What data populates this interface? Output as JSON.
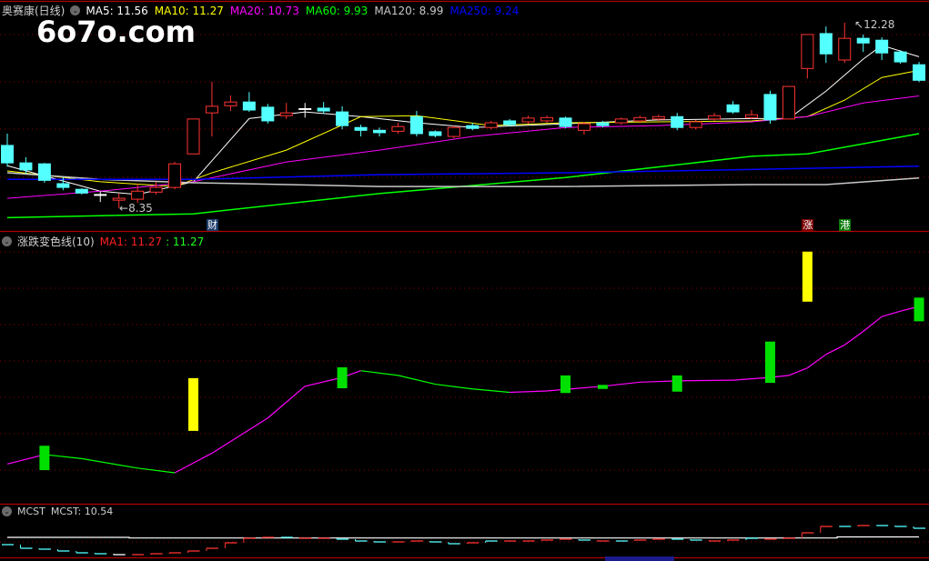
{
  "header": {
    "stock_title": "奥赛康(日线)",
    "ma_labels": [
      {
        "text": "MA5: 11.56",
        "color": "#ffffff"
      },
      {
        "text": "MA10: 11.27",
        "color": "#ffff00"
      },
      {
        "text": "MA20: 10.73",
        "color": "#ff00ff"
      },
      {
        "text": "MA60: 9.93",
        "color": "#00ff00"
      },
      {
        "text": "MA120: 8.99",
        "color": "#c8c8c8"
      },
      {
        "text": "MA250: 9.24",
        "color": "#0000ff"
      }
    ]
  },
  "watermark": "6o7o.com",
  "price_labels": {
    "high": "12.28",
    "low": "8.35"
  },
  "event_marks": [
    {
      "text": "财",
      "index": 11,
      "bg": "#1a3a6a"
    },
    {
      "text": "涨",
      "index": 43,
      "bg": "#7a0000"
    },
    {
      "text": "港",
      "index": 45,
      "bg": "#0a7a0a"
    }
  ],
  "indicator2": {
    "title": "涨跌变色线(10)",
    "ma1_label": "MA1: 11.27",
    "value_label": ": 11.27"
  },
  "indicator3": {
    "title": "MCST",
    "value_label": "MCST: 10.54"
  },
  "colors": {
    "up": "#ff3232",
    "down": "#54ffff",
    "grid": "#8b0000",
    "border": "#b00000"
  },
  "chart_data": [
    {
      "type": "candlestick",
      "title": "奥赛康(日线)",
      "ohlc": [
        [
          9.68,
          9.31,
          9.93,
          9.23
        ],
        [
          9.31,
          9.16,
          9.43,
          9.08
        ],
        [
          9.29,
          8.94,
          9.31,
          8.89
        ],
        [
          8.87,
          8.79,
          9.0,
          8.73
        ],
        [
          8.75,
          8.67,
          8.77,
          8.64
        ],
        [
          8.64,
          8.63,
          8.71,
          8.48
        ],
        [
          8.52,
          8.56,
          8.66,
          8.35
        ],
        [
          8.54,
          8.71,
          8.87,
          8.46
        ],
        [
          8.69,
          8.79,
          8.91,
          8.64
        ],
        [
          8.79,
          9.29,
          9.33,
          8.75
        ],
        [
          9.5,
          10.24,
          10.24,
          9.5
        ],
        [
          10.37,
          10.51,
          11.03,
          9.87
        ],
        [
          10.52,
          10.6,
          10.74,
          10.41
        ],
        [
          10.6,
          10.43,
          10.81,
          10.39
        ],
        [
          10.49,
          10.2,
          10.56,
          10.14
        ],
        [
          10.31,
          10.37,
          10.58,
          10.24
        ],
        [
          10.45,
          10.46,
          10.58,
          10.27
        ],
        [
          10.47,
          10.41,
          10.6,
          10.35
        ],
        [
          10.39,
          10.1,
          10.51,
          10.02
        ],
        [
          10.06,
          10.0,
          10.12,
          9.87
        ],
        [
          10.0,
          9.95,
          10.06,
          9.87
        ],
        [
          9.98,
          10.08,
          10.16,
          9.93
        ],
        [
          10.29,
          9.93,
          10.41,
          9.87
        ],
        [
          9.97,
          9.89,
          10.0,
          9.85
        ],
        [
          9.87,
          10.06,
          10.1,
          9.83
        ],
        [
          10.1,
          10.04,
          10.16,
          10.0
        ],
        [
          10.06,
          10.16,
          10.2,
          10.02
        ],
        [
          10.2,
          10.12,
          10.24,
          10.08
        ],
        [
          10.18,
          10.26,
          10.31,
          10.14
        ],
        [
          10.2,
          10.27,
          10.31,
          10.16
        ],
        [
          10.26,
          10.08,
          10.29,
          10.04
        ],
        [
          10.0,
          10.14,
          10.18,
          9.91
        ],
        [
          10.16,
          10.1,
          10.2,
          10.06
        ],
        [
          10.16,
          10.24,
          10.27,
          10.12
        ],
        [
          10.2,
          10.27,
          10.31,
          10.16
        ],
        [
          10.24,
          10.29,
          10.33,
          10.2
        ],
        [
          10.29,
          10.06,
          10.37,
          10.0
        ],
        [
          10.06,
          10.18,
          10.22,
          10.02
        ],
        [
          10.24,
          10.31,
          10.37,
          10.2
        ],
        [
          10.54,
          10.39,
          10.62,
          10.35
        ],
        [
          10.27,
          10.33,
          10.43,
          10.24
        ],
        [
          10.76,
          10.22,
          10.84,
          10.14
        ],
        [
          10.24,
          10.93,
          10.93,
          10.24
        ],
        [
          11.31,
          12.03,
          12.03,
          11.1
        ],
        [
          12.05,
          11.62,
          12.2,
          11.43
        ],
        [
          11.49,
          11.95,
          12.28,
          11.43
        ],
        [
          11.95,
          11.85,
          12.03,
          11.66
        ],
        [
          11.91,
          11.64,
          11.97,
          11.49
        ],
        [
          11.66,
          11.45,
          11.7,
          11.41
        ],
        [
          11.39,
          11.06,
          11.45,
          11.02
        ]
      ],
      "moving_averages": [
        {
          "name": "MA5",
          "color": "#ffffff",
          "points": [
            [
              0,
              9.25
            ],
            [
              5,
              8.71
            ],
            [
              7,
              8.64
            ],
            [
              10,
              8.91
            ],
            [
              13,
              10.25
            ],
            [
              16,
              10.39
            ],
            [
              19,
              10.29
            ],
            [
              22,
              10.16
            ],
            [
              25,
              10.06
            ],
            [
              30,
              10.14
            ],
            [
              35,
              10.22
            ],
            [
              40,
              10.25
            ],
            [
              42,
              10.25
            ],
            [
              44,
              10.83
            ],
            [
              46,
              11.51
            ],
            [
              47,
              11.8
            ],
            [
              49,
              11.56
            ]
          ]
        },
        {
          "name": "MA10",
          "color": "#ffff00",
          "points": [
            [
              0,
              9.14
            ],
            [
              5,
              8.91
            ],
            [
              9,
              8.81
            ],
            [
              11,
              9.1
            ],
            [
              15,
              9.58
            ],
            [
              19,
              10.29
            ],
            [
              22,
              10.31
            ],
            [
              26,
              10.1
            ],
            [
              30,
              10.16
            ],
            [
              40,
              10.2
            ],
            [
              43,
              10.29
            ],
            [
              45,
              10.64
            ],
            [
              47,
              11.12
            ],
            [
              49,
              11.27
            ]
          ]
        },
        {
          "name": "MA20",
          "color": "#ff00ff",
          "points": [
            [
              0,
              8.56
            ],
            [
              5,
              8.71
            ],
            [
              10,
              8.91
            ],
            [
              15,
              9.33
            ],
            [
              20,
              9.58
            ],
            [
              25,
              9.87
            ],
            [
              30,
              10.06
            ],
            [
              35,
              10.1
            ],
            [
              40,
              10.18
            ],
            [
              43,
              10.29
            ],
            [
              46,
              10.58
            ],
            [
              49,
              10.73
            ]
          ]
        },
        {
          "name": "MA60",
          "color": "#00ff00",
          "points": [
            [
              0,
              8.15
            ],
            [
              10,
              8.23
            ],
            [
              20,
              8.66
            ],
            [
              30,
              9.0
            ],
            [
              40,
              9.45
            ],
            [
              43,
              9.5
            ],
            [
              49,
              9.93
            ]
          ]
        },
        {
          "name": "MA120",
          "color": "#c8c8c8",
          "points": [
            [
              0,
              9.1
            ],
            [
              5,
              8.96
            ],
            [
              10,
              8.89
            ],
            [
              20,
              8.81
            ],
            [
              30,
              8.81
            ],
            [
              40,
              8.85
            ],
            [
              44,
              8.85
            ],
            [
              49,
              8.99
            ]
          ]
        },
        {
          "name": "MA250",
          "color": "#0000ff",
          "points": [
            [
              0,
              8.96
            ],
            [
              10,
              8.96
            ],
            [
              20,
              9.06
            ],
            [
              30,
              9.1
            ],
            [
              40,
              9.17
            ],
            [
              45,
              9.21
            ],
            [
              49,
              9.24
            ]
          ]
        }
      ]
    },
    {
      "type": "line",
      "title": "涨跌变色线(10)",
      "line": [
        [
          0,
          8.94
        ],
        [
          2,
          9.08
        ],
        [
          4,
          9.02
        ],
        [
          7,
          8.88
        ],
        [
          9,
          8.81
        ],
        [
          11,
          9.1
        ],
        [
          14,
          9.62
        ],
        [
          16,
          10.09
        ],
        [
          18,
          10.22
        ],
        [
          19,
          10.32
        ],
        [
          21,
          10.25
        ],
        [
          23,
          10.12
        ],
        [
          25,
          10.05
        ],
        [
          27,
          10.0
        ],
        [
          29,
          10.02
        ],
        [
          32,
          10.09
        ],
        [
          34,
          10.15
        ],
        [
          36,
          10.17
        ],
        [
          39,
          10.18
        ],
        [
          41,
          10.22
        ],
        [
          42,
          10.25
        ],
        [
          43,
          10.36
        ],
        [
          44,
          10.56
        ],
        [
          45,
          10.7
        ],
        [
          46,
          10.9
        ],
        [
          47,
          11.12
        ],
        [
          48,
          11.2
        ],
        [
          49,
          11.27
        ]
      ],
      "line_colors": {
        "rising": "#ff00ff",
        "falling": "#00ff00"
      },
      "bars": [
        {
          "index": 2,
          "top": 9.21,
          "bottom": 8.85,
          "color": "#00e000"
        },
        {
          "index": 10,
          "top": 10.21,
          "bottom": 9.43,
          "color": "#ffff00"
        },
        {
          "index": 18,
          "top": 10.37,
          "bottom": 10.06,
          "color": "#00e000"
        },
        {
          "index": 30,
          "top": 10.25,
          "bottom": 9.99,
          "color": "#00e000"
        },
        {
          "index": 32,
          "top": 10.11,
          "bottom": 10.05,
          "color": "#00e000"
        },
        {
          "index": 36,
          "top": 10.25,
          "bottom": 10.01,
          "color": "#00e000"
        },
        {
          "index": 41,
          "top": 10.75,
          "bottom": 10.14,
          "color": "#00e000"
        },
        {
          "index": 43,
          "top": 12.08,
          "bottom": 11.34,
          "color": "#ffff00"
        },
        {
          "index": 49,
          "top": 11.4,
          "bottom": 11.05,
          "color": "#00e000"
        }
      ]
    },
    {
      "type": "step",
      "title": "MCST",
      "mcst": 10.54,
      "steps": [
        [
          10.06,
          "d"
        ],
        [
          9.82,
          "d"
        ],
        [
          9.76,
          "d"
        ],
        [
          9.64,
          "d"
        ],
        [
          9.52,
          "d"
        ],
        [
          9.46,
          "d"
        ],
        [
          9.4,
          "w"
        ],
        [
          9.4,
          "u"
        ],
        [
          9.46,
          "u"
        ],
        [
          9.52,
          "u"
        ],
        [
          9.64,
          "u"
        ],
        [
          9.82,
          "u"
        ],
        [
          10.18,
          "u"
        ],
        [
          10.48,
          "u"
        ],
        [
          10.54,
          "u"
        ],
        [
          10.54,
          "d"
        ],
        [
          10.48,
          "u"
        ],
        [
          10.48,
          "u"
        ],
        [
          10.42,
          "d"
        ],
        [
          10.3,
          "d"
        ],
        [
          10.24,
          "d"
        ],
        [
          10.24,
          "u"
        ],
        [
          10.3,
          "u"
        ],
        [
          10.24,
          "d"
        ],
        [
          10.12,
          "d"
        ],
        [
          10.18,
          "u"
        ],
        [
          10.3,
          "d"
        ],
        [
          10.3,
          "u"
        ],
        [
          10.3,
          "u"
        ],
        [
          10.36,
          "u"
        ],
        [
          10.42,
          "u"
        ],
        [
          10.36,
          "d"
        ],
        [
          10.3,
          "u"
        ],
        [
          10.3,
          "d"
        ],
        [
          10.36,
          "u"
        ],
        [
          10.42,
          "u"
        ],
        [
          10.42,
          "d"
        ],
        [
          10.36,
          "d"
        ],
        [
          10.3,
          "u"
        ],
        [
          10.36,
          "u"
        ],
        [
          10.48,
          "d"
        ],
        [
          10.42,
          "u"
        ],
        [
          10.48,
          "u"
        ],
        [
          10.84,
          "u"
        ],
        [
          11.26,
          "u"
        ],
        [
          11.26,
          "d"
        ],
        [
          11.32,
          "u"
        ],
        [
          11.32,
          "d"
        ],
        [
          11.26,
          "d"
        ],
        [
          11.14,
          "d"
        ]
      ]
    }
  ]
}
